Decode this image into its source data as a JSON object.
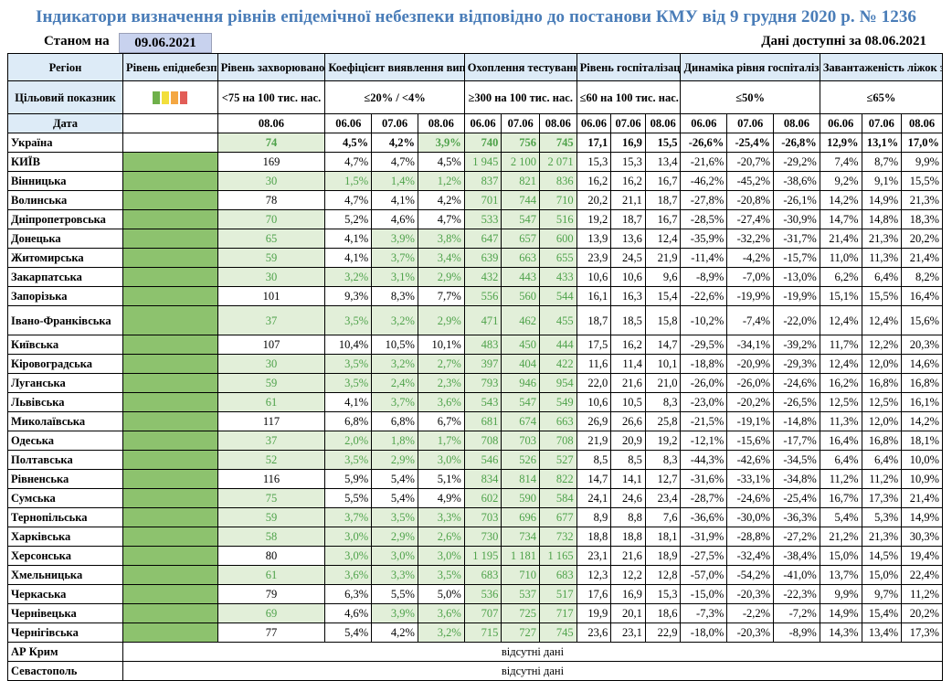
{
  "title": "Індикатори визначення рівнів епідемічної небезпеки відповідно до постанови КМУ від 9 грудня 2020 р. № 1236",
  "asof_label": "Станом на",
  "asof_date": "09.06.2021",
  "avail_text": "Дані доступні за  08.06.2021",
  "headers": {
    "region": "Регіон",
    "level": "Рівень епіднебезпеки",
    "incidence": "Рівень захворюваності",
    "detection": "Коефіцієнт виявлення випадків інфікування",
    "testing": "Охоплення тестуванням",
    "hosp": "Рівень госпіталізацій",
    "hosp_dyn": "Динаміка рівня госпіталізацій",
    "beds": "Завантаженість ліжок з киснем"
  },
  "targets": {
    "label": "Цільовий показник",
    "incidence": "<75 на 100 тис. нас.",
    "detection": "≤20% / <4%",
    "testing": "≥300 на 100 тис. нас.",
    "hosp": "≤60 на 100 тис. нас.",
    "hosp_dyn": "≤50%",
    "beds": "≤65%"
  },
  "swatch_colors": [
    "#6fb04a",
    "#f2df3c",
    "#f4a742",
    "#e25d57"
  ],
  "dates_row": {
    "label": "Дата",
    "incidence": "08.06",
    "detection": [
      "06.06",
      "07.06",
      "08.06"
    ],
    "testing": [
      "06.06",
      "07.06",
      "08.06"
    ],
    "hosp": [
      "06.06",
      "07.06",
      "08.06"
    ],
    "hosp_dyn": [
      "06.06",
      "07.06",
      "08.06"
    ],
    "beds": [
      "06.06",
      "07.06",
      "08.06"
    ]
  },
  "missing_text": "відсутні дані",
  "rows": [
    {
      "region": "Україна",
      "lvl": false,
      "inc": "74",
      "inc_ok": true,
      "det": [
        "4,5%",
        "4,2%",
        "3,9%"
      ],
      "det_ok": [
        false,
        false,
        true
      ],
      "test": [
        "740",
        "756",
        "745"
      ],
      "test_ok": [
        true,
        true,
        true
      ],
      "hosp": [
        "17,1",
        "16,9",
        "15,5"
      ],
      "hdyn": [
        "-26,6%",
        "-25,4%",
        "-26,8%"
      ],
      "beds": [
        "12,9%",
        "13,1%",
        "17,0%"
      ]
    },
    {
      "region": "КИЇВ",
      "lvl": true,
      "inc": "169",
      "inc_ok": false,
      "det": [
        "4,7%",
        "4,7%",
        "4,5%"
      ],
      "det_ok": [
        false,
        false,
        false
      ],
      "test": [
        "1 945",
        "2 100",
        "2 071"
      ],
      "test_ok": [
        true,
        true,
        true
      ],
      "hosp": [
        "15,3",
        "15,3",
        "13,4"
      ],
      "hdyn": [
        "-21,6%",
        "-20,7%",
        "-29,2%"
      ],
      "beds": [
        "7,4%",
        "8,7%",
        "9,9%"
      ]
    },
    {
      "region": "Вінницька",
      "lvl": true,
      "inc": "30",
      "inc_ok": true,
      "det": [
        "1,5%",
        "1,4%",
        "1,2%"
      ],
      "det_ok": [
        true,
        true,
        true
      ],
      "test": [
        "837",
        "821",
        "836"
      ],
      "test_ok": [
        true,
        true,
        true
      ],
      "hosp": [
        "16,2",
        "16,2",
        "16,7"
      ],
      "hdyn": [
        "-46,2%",
        "-45,2%",
        "-38,6%"
      ],
      "beds": [
        "9,2%",
        "9,1%",
        "15,5%"
      ]
    },
    {
      "region": "Волинська",
      "lvl": true,
      "inc": "78",
      "inc_ok": false,
      "det": [
        "4,7%",
        "4,1%",
        "4,2%"
      ],
      "det_ok": [
        false,
        false,
        false
      ],
      "test": [
        "701",
        "744",
        "710"
      ],
      "test_ok": [
        true,
        true,
        true
      ],
      "hosp": [
        "20,2",
        "21,1",
        "18,7"
      ],
      "hdyn": [
        "-27,8%",
        "-20,8%",
        "-26,1%"
      ],
      "beds": [
        "14,2%",
        "14,9%",
        "21,3%"
      ]
    },
    {
      "region": "Дніпропетровська",
      "lvl": true,
      "inc": "70",
      "inc_ok": true,
      "det": [
        "5,2%",
        "4,6%",
        "4,7%"
      ],
      "det_ok": [
        false,
        false,
        false
      ],
      "test": [
        "533",
        "547",
        "516"
      ],
      "test_ok": [
        true,
        true,
        true
      ],
      "hosp": [
        "19,2",
        "18,7",
        "16,7"
      ],
      "hdyn": [
        "-28,5%",
        "-27,4%",
        "-30,9%"
      ],
      "beds": [
        "14,7%",
        "14,8%",
        "18,3%"
      ]
    },
    {
      "region": "Донецька",
      "lvl": true,
      "inc": "65",
      "inc_ok": true,
      "det": [
        "4,1%",
        "3,9%",
        "3,8%"
      ],
      "det_ok": [
        false,
        true,
        true
      ],
      "test": [
        "647",
        "657",
        "600"
      ],
      "test_ok": [
        true,
        true,
        true
      ],
      "hosp": [
        "13,9",
        "13,6",
        "12,4"
      ],
      "hdyn": [
        "-35,9%",
        "-32,2%",
        "-31,7%"
      ],
      "beds": [
        "21,4%",
        "21,3%",
        "20,2%"
      ]
    },
    {
      "region": "Житомирська",
      "lvl": true,
      "inc": "59",
      "inc_ok": true,
      "det": [
        "4,1%",
        "3,7%",
        "3,4%"
      ],
      "det_ok": [
        false,
        true,
        true
      ],
      "test": [
        "639",
        "663",
        "655"
      ],
      "test_ok": [
        true,
        true,
        true
      ],
      "hosp": [
        "23,9",
        "24,5",
        "21,9"
      ],
      "hdyn": [
        "-11,4%",
        "-4,2%",
        "-15,7%"
      ],
      "beds": [
        "11,0%",
        "11,3%",
        "21,4%"
      ]
    },
    {
      "region": "Закарпатська",
      "lvl": true,
      "inc": "30",
      "inc_ok": true,
      "det": [
        "3,2%",
        "3,1%",
        "2,9%"
      ],
      "det_ok": [
        true,
        true,
        true
      ],
      "test": [
        "432",
        "443",
        "433"
      ],
      "test_ok": [
        true,
        true,
        true
      ],
      "hosp": [
        "10,6",
        "10,6",
        "9,6"
      ],
      "hdyn": [
        "-8,9%",
        "-7,0%",
        "-13,0%"
      ],
      "beds": [
        "6,2%",
        "6,4%",
        "8,2%"
      ]
    },
    {
      "region": "Запорізька",
      "lvl": true,
      "inc": "101",
      "inc_ok": false,
      "det": [
        "9,3%",
        "8,3%",
        "7,7%"
      ],
      "det_ok": [
        false,
        false,
        false
      ],
      "test": [
        "556",
        "560",
        "544"
      ],
      "test_ok": [
        true,
        true,
        true
      ],
      "hosp": [
        "16,1",
        "16,3",
        "15,4"
      ],
      "hdyn": [
        "-22,6%",
        "-19,9%",
        "-19,9%"
      ],
      "beds": [
        "15,1%",
        "15,5%",
        "16,4%"
      ]
    },
    {
      "region": "Івано-Франківська",
      "lvl": true,
      "tall": true,
      "inc": "37",
      "inc_ok": true,
      "det": [
        "3,5%",
        "3,2%",
        "2,9%"
      ],
      "det_ok": [
        true,
        true,
        true
      ],
      "test": [
        "471",
        "462",
        "455"
      ],
      "test_ok": [
        true,
        true,
        true
      ],
      "hosp": [
        "18,7",
        "18,5",
        "15,8"
      ],
      "hdyn": [
        "-10,2%",
        "-7,4%",
        "-22,0%"
      ],
      "beds": [
        "12,4%",
        "12,4%",
        "15,6%"
      ]
    },
    {
      "region": "Київська",
      "lvl": true,
      "inc": "107",
      "inc_ok": false,
      "det": [
        "10,4%",
        "10,5%",
        "10,1%"
      ],
      "det_ok": [
        false,
        false,
        false
      ],
      "test": [
        "483",
        "450",
        "444"
      ],
      "test_ok": [
        true,
        true,
        true
      ],
      "hosp": [
        "17,5",
        "16,2",
        "14,7"
      ],
      "hdyn": [
        "-29,5%",
        "-34,1%",
        "-39,2%"
      ],
      "beds": [
        "11,7%",
        "12,2%",
        "20,3%"
      ]
    },
    {
      "region": "Кіровоградська",
      "lvl": true,
      "inc": "30",
      "inc_ok": true,
      "det": [
        "3,5%",
        "3,2%",
        "2,7%"
      ],
      "det_ok": [
        true,
        true,
        true
      ],
      "test": [
        "397",
        "404",
        "422"
      ],
      "test_ok": [
        true,
        true,
        true
      ],
      "hosp": [
        "11,6",
        "11,4",
        "10,1"
      ],
      "hdyn": [
        "-18,8%",
        "-20,9%",
        "-29,3%"
      ],
      "beds": [
        "12,4%",
        "12,0%",
        "14,6%"
      ]
    },
    {
      "region": "Луганська",
      "lvl": true,
      "inc": "59",
      "inc_ok": true,
      "det": [
        "3,5%",
        "2,4%",
        "2,3%"
      ],
      "det_ok": [
        true,
        true,
        true
      ],
      "test": [
        "793",
        "946",
        "954"
      ],
      "test_ok": [
        true,
        true,
        true
      ],
      "hosp": [
        "22,0",
        "21,6",
        "21,0"
      ],
      "hdyn": [
        "-26,0%",
        "-26,0%",
        "-24,6%"
      ],
      "beds": [
        "16,2%",
        "16,8%",
        "16,8%"
      ]
    },
    {
      "region": "Львівська",
      "lvl": true,
      "inc": "61",
      "inc_ok": true,
      "det": [
        "4,1%",
        "3,7%",
        "3,6%"
      ],
      "det_ok": [
        false,
        true,
        true
      ],
      "test": [
        "543",
        "547",
        "549"
      ],
      "test_ok": [
        true,
        true,
        true
      ],
      "hosp": [
        "10,6",
        "10,5",
        "8,3"
      ],
      "hdyn": [
        "-23,0%",
        "-20,2%",
        "-26,5%"
      ],
      "beds": [
        "12,5%",
        "12,5%",
        "16,1%"
      ]
    },
    {
      "region": "Миколаївська",
      "lvl": true,
      "inc": "117",
      "inc_ok": false,
      "det": [
        "6,8%",
        "6,8%",
        "6,7%"
      ],
      "det_ok": [
        false,
        false,
        false
      ],
      "test": [
        "681",
        "674",
        "663"
      ],
      "test_ok": [
        true,
        true,
        true
      ],
      "hosp": [
        "26,9",
        "26,6",
        "25,8"
      ],
      "hdyn": [
        "-21,5%",
        "-19,1%",
        "-14,8%"
      ],
      "beds": [
        "11,3%",
        "12,0%",
        "14,2%"
      ]
    },
    {
      "region": "Одеська",
      "lvl": true,
      "inc": "37",
      "inc_ok": true,
      "det": [
        "2,0%",
        "1,8%",
        "1,7%"
      ],
      "det_ok": [
        true,
        true,
        true
      ],
      "test": [
        "708",
        "703",
        "708"
      ],
      "test_ok": [
        true,
        true,
        true
      ],
      "hosp": [
        "21,9",
        "20,9",
        "19,2"
      ],
      "hdyn": [
        "-12,1%",
        "-15,6%",
        "-17,7%"
      ],
      "beds": [
        "16,4%",
        "16,8%",
        "18,1%"
      ]
    },
    {
      "region": "Полтавська",
      "lvl": true,
      "inc": "52",
      "inc_ok": true,
      "det": [
        "3,5%",
        "2,9%",
        "3,0%"
      ],
      "det_ok": [
        true,
        true,
        true
      ],
      "test": [
        "546",
        "526",
        "527"
      ],
      "test_ok": [
        true,
        true,
        true
      ],
      "hosp": [
        "8,5",
        "8,5",
        "8,3"
      ],
      "hdyn": [
        "-44,3%",
        "-42,6%",
        "-34,5%"
      ],
      "beds": [
        "6,4%",
        "6,4%",
        "10,0%"
      ]
    },
    {
      "region": "Рівненська",
      "lvl": true,
      "inc": "116",
      "inc_ok": false,
      "det": [
        "5,9%",
        "5,4%",
        "5,1%"
      ],
      "det_ok": [
        false,
        false,
        false
      ],
      "test": [
        "834",
        "814",
        "822"
      ],
      "test_ok": [
        true,
        true,
        true
      ],
      "hosp": [
        "14,7",
        "14,1",
        "12,7"
      ],
      "hdyn": [
        "-31,6%",
        "-33,1%",
        "-34,8%"
      ],
      "beds": [
        "11,2%",
        "11,2%",
        "10,9%"
      ]
    },
    {
      "region": "Сумська",
      "lvl": true,
      "inc": "75",
      "inc_ok": true,
      "det": [
        "5,5%",
        "5,4%",
        "4,9%"
      ],
      "det_ok": [
        false,
        false,
        false
      ],
      "test": [
        "602",
        "590",
        "584"
      ],
      "test_ok": [
        true,
        true,
        true
      ],
      "hosp": [
        "24,1",
        "24,6",
        "23,4"
      ],
      "hdyn": [
        "-28,7%",
        "-24,6%",
        "-25,4%"
      ],
      "beds": [
        "16,7%",
        "17,3%",
        "21,4%"
      ]
    },
    {
      "region": "Тернопільська",
      "lvl": true,
      "inc": "59",
      "inc_ok": true,
      "det": [
        "3,7%",
        "3,5%",
        "3,3%"
      ],
      "det_ok": [
        true,
        true,
        true
      ],
      "test": [
        "703",
        "696",
        "677"
      ],
      "test_ok": [
        true,
        true,
        true
      ],
      "hosp": [
        "8,9",
        "8,8",
        "7,6"
      ],
      "hdyn": [
        "-36,6%",
        "-30,0%",
        "-36,3%"
      ],
      "beds": [
        "5,4%",
        "5,3%",
        "14,9%"
      ]
    },
    {
      "region": "Харківська",
      "lvl": true,
      "inc": "58",
      "inc_ok": true,
      "det": [
        "3,0%",
        "2,9%",
        "2,6%"
      ],
      "det_ok": [
        true,
        true,
        true
      ],
      "test": [
        "730",
        "734",
        "732"
      ],
      "test_ok": [
        true,
        true,
        true
      ],
      "hosp": [
        "18,8",
        "18,8",
        "18,1"
      ],
      "hdyn": [
        "-31,9%",
        "-28,8%",
        "-27,2%"
      ],
      "beds": [
        "21,2%",
        "21,3%",
        "30,3%"
      ]
    },
    {
      "region": "Херсонська",
      "lvl": true,
      "inc": "80",
      "inc_ok": false,
      "det": [
        "3,0%",
        "3,0%",
        "3,0%"
      ],
      "det_ok": [
        true,
        true,
        true
      ],
      "test": [
        "1 195",
        "1 181",
        "1 165"
      ],
      "test_ok": [
        true,
        true,
        true
      ],
      "hosp": [
        "23,1",
        "21,6",
        "18,9"
      ],
      "hdyn": [
        "-27,5%",
        "-32,4%",
        "-38,4%"
      ],
      "beds": [
        "15,0%",
        "14,5%",
        "19,4%"
      ]
    },
    {
      "region": "Хмельницька",
      "lvl": true,
      "inc": "61",
      "inc_ok": true,
      "det": [
        "3,6%",
        "3,3%",
        "3,5%"
      ],
      "det_ok": [
        true,
        true,
        true
      ],
      "test": [
        "683",
        "710",
        "683"
      ],
      "test_ok": [
        true,
        true,
        true
      ],
      "hosp": [
        "12,3",
        "12,2",
        "12,8"
      ],
      "hdyn": [
        "-57,0%",
        "-54,2%",
        "-41,0%"
      ],
      "beds": [
        "13,7%",
        "15,0%",
        "22,4%"
      ]
    },
    {
      "region": "Черкаська",
      "lvl": true,
      "inc": "79",
      "inc_ok": false,
      "det": [
        "6,3%",
        "5,5%",
        "5,0%"
      ],
      "det_ok": [
        false,
        false,
        false
      ],
      "test": [
        "536",
        "537",
        "517"
      ],
      "test_ok": [
        true,
        true,
        true
      ],
      "hosp": [
        "17,6",
        "16,9",
        "15,3"
      ],
      "hdyn": [
        "-15,0%",
        "-20,3%",
        "-22,3%"
      ],
      "beds": [
        "9,9%",
        "9,7%",
        "11,2%"
      ]
    },
    {
      "region": "Чернівецька",
      "lvl": true,
      "inc": "69",
      "inc_ok": true,
      "det": [
        "4,6%",
        "3,9%",
        "3,6%"
      ],
      "det_ok": [
        false,
        true,
        true
      ],
      "test": [
        "707",
        "725",
        "717"
      ],
      "test_ok": [
        true,
        true,
        true
      ],
      "hosp": [
        "19,9",
        "20,1",
        "18,6"
      ],
      "hdyn": [
        "-7,3%",
        "-2,2%",
        "-7,2%"
      ],
      "beds": [
        "14,9%",
        "15,4%",
        "20,2%"
      ]
    },
    {
      "region": "Чернігівська",
      "lvl": true,
      "inc": "77",
      "inc_ok": false,
      "det": [
        "5,4%",
        "4,2%",
        "3,2%"
      ],
      "det_ok": [
        false,
        false,
        true
      ],
      "test": [
        "715",
        "727",
        "745"
      ],
      "test_ok": [
        true,
        true,
        true
      ],
      "hosp": [
        "23,6",
        "23,1",
        "22,9"
      ],
      "hdyn": [
        "-18,0%",
        "-20,3%",
        "-8,9%"
      ],
      "beds": [
        "14,3%",
        "13,4%",
        "17,3%"
      ]
    }
  ],
  "missing_rows": [
    "АР Крим",
    "Севастополь"
  ]
}
